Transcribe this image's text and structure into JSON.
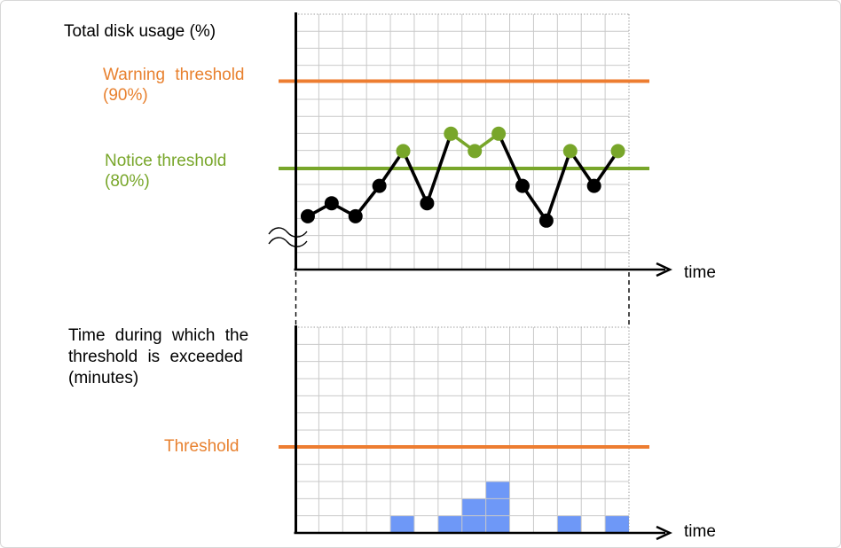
{
  "colors": {
    "warning_orange": "#ED7D31",
    "notice_green": "#78A62A",
    "series_black": "#000000",
    "bar_blue": "#6E98F7",
    "grid_gray": "#C9C9C9",
    "grid_border_gray": "#9E9E9E",
    "axis_black": "#000000"
  },
  "top_chart": {
    "title": "Total disk usage (%)",
    "warning_label": [
      "Warning threshold",
      "(90%)"
    ],
    "notice_label": [
      "Notice threshold",
      "(80%)"
    ],
    "time_label": "time"
  },
  "bottom_chart": {
    "title": [
      "Time during which the",
      "threshold is exceeded",
      "(minutes)"
    ],
    "threshold_label": "Threshold",
    "time_label": "time"
  },
  "chart_data": [
    {
      "type": "line",
      "title": "Total disk usage (%)",
      "xlabel": "time",
      "ylabel": "Total disk usage (%)",
      "x": [
        1,
        2,
        3,
        4,
        5,
        6,
        7,
        8,
        9,
        10,
        11,
        12,
        13,
        14
      ],
      "values": [
        74.5,
        76,
        74.5,
        78,
        82,
        76,
        84,
        82,
        84,
        78,
        74,
        82,
        78,
        82
      ],
      "above_notice_threshold": [
        false,
        false,
        false,
        false,
        true,
        false,
        true,
        true,
        true,
        false,
        false,
        true,
        false,
        true
      ],
      "thresholds": [
        {
          "label": "Warning threshold (90%)",
          "value": 90,
          "color": "#ED7D31"
        },
        {
          "label": "Notice threshold (80%)",
          "value": 80,
          "color": "#78A62A"
        }
      ],
      "point_color_above": "#78A62A",
      "point_color_below": "#000000",
      "axis_break": true,
      "grid": {
        "columns": 14,
        "rows": 15,
        "visible": true
      },
      "ylim": [
        68,
        98
      ]
    },
    {
      "type": "bar",
      "title": "Time during which the threshold is exceeded (minutes)",
      "xlabel": "time",
      "categories": [
        1,
        2,
        3,
        4,
        5,
        6,
        7,
        8,
        9,
        10,
        11,
        12,
        13,
        14
      ],
      "values": [
        0,
        0,
        0,
        0,
        1,
        0,
        1,
        2,
        3,
        0,
        0,
        1,
        0,
        1
      ],
      "values_unit": "grid_cells",
      "bar_color": "#6E98F7",
      "threshold": {
        "label": "Threshold",
        "value": 5,
        "value_unit": "grid_cells",
        "color": "#ED7D31"
      },
      "grid": {
        "columns": 14,
        "rows": 12,
        "visible": true
      },
      "ylim": [
        0,
        12
      ]
    }
  ]
}
